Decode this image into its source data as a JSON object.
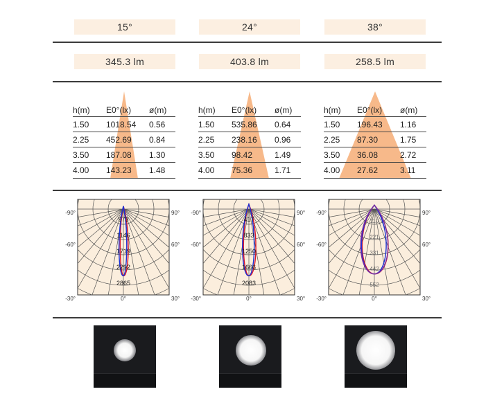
{
  "columns": [
    {
      "angle": "15°",
      "flux": "345.3 lm",
      "table": {
        "headers": [
          "h(m)",
          "E0°(lx)",
          "ø(m)"
        ],
        "rows": [
          [
            "1.50",
            "1018.54",
            "0.56"
          ],
          [
            "2.25",
            "452.69",
            "0.84"
          ],
          [
            "3.50",
            "187.08",
            "1.30"
          ],
          [
            "4.00",
            "143.23",
            "1.48"
          ]
        ]
      },
      "polar": {
        "angle_labels": {
          "top_left": "-90°",
          "top_right": "90°",
          "mid_left": "-60°",
          "mid_right": "60°",
          "bot_left": "-30°",
          "bot_center": "0°",
          "bot_right": "30°"
        },
        "ring_labels": [
          "573",
          "1146",
          "1719",
          "2292",
          "2865"
        ]
      }
    },
    {
      "angle": "24°",
      "flux": "403.8 lm",
      "table": {
        "headers": [
          "h(m)",
          "E0°(lx)",
          "ø(m)"
        ],
        "rows": [
          [
            "1.50",
            "535.86",
            "0.64"
          ],
          [
            "2.25",
            "238.16",
            "0.96"
          ],
          [
            "3.50",
            "98.42",
            "1.49"
          ],
          [
            "4.00",
            "75.36",
            "1.71"
          ]
        ]
      },
      "polar": {
        "angle_labels": {
          "top_left": "-90°",
          "top_right": "90°",
          "mid_left": "-60°",
          "mid_right": "60°",
          "bot_left": "-30°",
          "bot_center": "0°",
          "bot_right": "30°"
        },
        "ring_labels": [
          "417",
          "833",
          "1250",
          "1666",
          "2083"
        ]
      }
    },
    {
      "angle": "38°",
      "flux": "258.5 lm",
      "table": {
        "headers": [
          "h(m)",
          "E0°(lx)",
          "ø(m)"
        ],
        "rows": [
          [
            "1.50",
            "196.43",
            "1.16"
          ],
          [
            "2.25",
            "87.30",
            "1.75"
          ],
          [
            "3.50",
            "36.08",
            "2.72"
          ],
          [
            "4.00",
            "27.62",
            "3.11"
          ]
        ]
      },
      "polar": {
        "angle_labels": {
          "top_left": "-90°",
          "top_right": "90°",
          "mid_left": "-60°",
          "mid_right": "60°",
          "bot_left": "-30°",
          "bot_center": "0°",
          "bot_right": "30°"
        },
        "ring_labels": [
          "110",
          "221",
          "331",
          "442",
          "552"
        ]
      }
    }
  ],
  "colors": {
    "pill_bg": "#fcefe1",
    "cone": "#f7b98a",
    "polar_bg": "#fbeedd",
    "polar_grid": "#555555",
    "curve_c0": "#1a2fd6",
    "curve_c90": "#d8142a",
    "curve_c180": "#7a2ea0"
  }
}
